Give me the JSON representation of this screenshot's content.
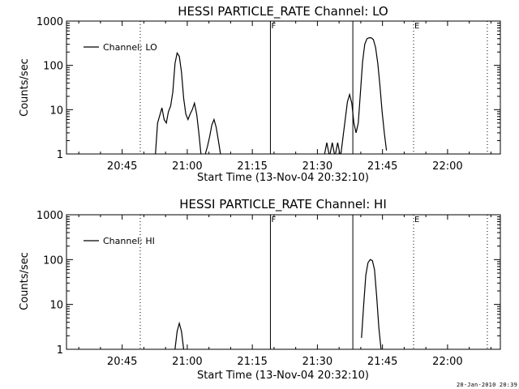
{
  "footer_text": "20-Jan-2010 20:39",
  "chart_data": [
    {
      "type": "line",
      "title": "HESSI PARTICLE_RATE Channel: LO",
      "xlabel": "Start Time (13-Nov-04 20:32:10)",
      "ylabel": "Counts/sec",
      "y_scale": "log",
      "ylim": [
        1,
        1000
      ],
      "xlim": [
        "20:32:10",
        "22:12:10"
      ],
      "x_tick_labels": [
        "20:45",
        "21:00",
        "21:15",
        "21:30",
        "21:45",
        "22:00"
      ],
      "y_tick_labels": [
        "1",
        "10",
        "100",
        "1000"
      ],
      "legend": {
        "position": "top-left",
        "entries": [
          "Channel: LO"
        ]
      },
      "markers": [
        {
          "label": "",
          "time": "20:49:10",
          "style": "dotted"
        },
        {
          "label": "F",
          "time": "21:19:10",
          "style": "solid"
        },
        {
          "label": "",
          "time": "21:38:10",
          "style": "solid"
        },
        {
          "label": "E",
          "time": "21:52:10",
          "style": "dotted"
        },
        {
          "label": "",
          "time": "22:09:10",
          "style": "dotted"
        }
      ],
      "series": [
        {
          "name": "Channel: LO",
          "segments": [
            [
              [
                "20:52:40",
                1
              ],
              [
                "20:53:10",
                5
              ],
              [
                "20:54:10",
                11
              ],
              [
                "20:54:40",
                6
              ],
              [
                "20:55:10",
                5
              ],
              [
                "20:55:40",
                9
              ],
              [
                "20:56:10",
                12
              ],
              [
                "20:56:40",
                25
              ],
              [
                "20:57:10",
                110
              ],
              [
                "20:57:40",
                190
              ],
              [
                "20:58:10",
                160
              ],
              [
                "20:58:40",
                70
              ],
              [
                "20:59:10",
                18
              ],
              [
                "20:59:40",
                8
              ],
              [
                "21:00:10",
                6
              ],
              [
                "21:00:40",
                8
              ],
              [
                "21:01:10",
                10
              ],
              [
                "21:01:40",
                14
              ],
              [
                "21:02:10",
                8
              ],
              [
                "21:02:40",
                3
              ],
              [
                "21:03:10",
                1
              ]
            ],
            [
              [
                "21:04:10",
                1
              ],
              [
                "21:04:40",
                1.5
              ],
              [
                "21:05:10",
                2.5
              ],
              [
                "21:05:40",
                4.5
              ],
              [
                "21:06:10",
                6
              ],
              [
                "21:06:40",
                4
              ],
              [
                "21:07:10",
                2
              ],
              [
                "21:07:40",
                1
              ]
            ],
            [
              [
                "21:31:40",
                1
              ],
              [
                "21:32:10",
                1.8
              ],
              [
                "21:32:40",
                1
              ]
            ],
            [
              [
                "21:32:55",
                1
              ],
              [
                "21:33:25",
                1.8
              ],
              [
                "21:33:55",
                1
              ]
            ],
            [
              [
                "21:34:10",
                1
              ],
              [
                "21:34:40",
                1.8
              ],
              [
                "21:35:10",
                1
              ]
            ],
            [
              [
                "21:35:25",
                1
              ],
              [
                "21:35:55",
                2.5
              ],
              [
                "21:36:25",
                6
              ],
              [
                "21:36:55",
                15
              ],
              [
                "21:37:25",
                22
              ],
              [
                "21:37:55",
                14
              ],
              [
                "21:38:25",
                5
              ],
              [
                "21:38:55",
                3
              ],
              [
                "21:39:25",
                5
              ],
              [
                "21:39:55",
                25
              ],
              [
                "21:40:25",
                120
              ],
              [
                "21:40:55",
                300
              ],
              [
                "21:41:25",
                400
              ],
              [
                "21:41:55",
                420
              ],
              [
                "21:42:25",
                420
              ],
              [
                "21:42:55",
                380
              ],
              [
                "21:43:25",
                250
              ],
              [
                "21:43:55",
                110
              ],
              [
                "21:44:25",
                35
              ],
              [
                "21:44:55",
                9
              ],
              [
                "21:45:25",
                3
              ],
              [
                "21:45:55",
                1.2
              ]
            ]
          ]
        }
      ]
    },
    {
      "type": "line",
      "title": "HESSI PARTICLE_RATE Channel: HI",
      "xlabel": "Start Time (13-Nov-04 20:32:10)",
      "ylabel": "Counts/sec",
      "y_scale": "log",
      "ylim": [
        1,
        1000
      ],
      "xlim": [
        "20:32:10",
        "22:12:10"
      ],
      "x_tick_labels": [
        "20:45",
        "21:00",
        "21:15",
        "21:30",
        "21:45",
        "22:00"
      ],
      "y_tick_labels": [
        "1",
        "10",
        "100",
        "1000"
      ],
      "legend": {
        "position": "top-left",
        "entries": [
          "Channel: HI"
        ]
      },
      "markers": [
        {
          "label": "",
          "time": "20:49:10",
          "style": "dotted"
        },
        {
          "label": "F",
          "time": "21:19:10",
          "style": "solid"
        },
        {
          "label": "",
          "time": "21:38:10",
          "style": "solid"
        },
        {
          "label": "E",
          "time": "21:52:10",
          "style": "dotted"
        },
        {
          "label": "",
          "time": "22:09:10",
          "style": "dotted"
        }
      ],
      "series": [
        {
          "name": "Channel: HI",
          "segments": [
            [
              [
                "20:57:10",
                1
              ],
              [
                "20:57:40",
                2.5
              ],
              [
                "20:58:10",
                3.8
              ],
              [
                "20:58:40",
                2.5
              ],
              [
                "20:59:10",
                1
              ]
            ],
            [
              [
                "21:40:10",
                1.8
              ],
              [
                "21:40:40",
                10
              ],
              [
                "21:41:10",
                45
              ],
              [
                "21:41:40",
                85
              ],
              [
                "21:42:10",
                100
              ],
              [
                "21:42:40",
                95
              ],
              [
                "21:43:10",
                60
              ],
              [
                "21:43:40",
                15
              ],
              [
                "21:44:10",
                3
              ],
              [
                "21:44:40",
                1
              ]
            ]
          ]
        }
      ]
    }
  ]
}
